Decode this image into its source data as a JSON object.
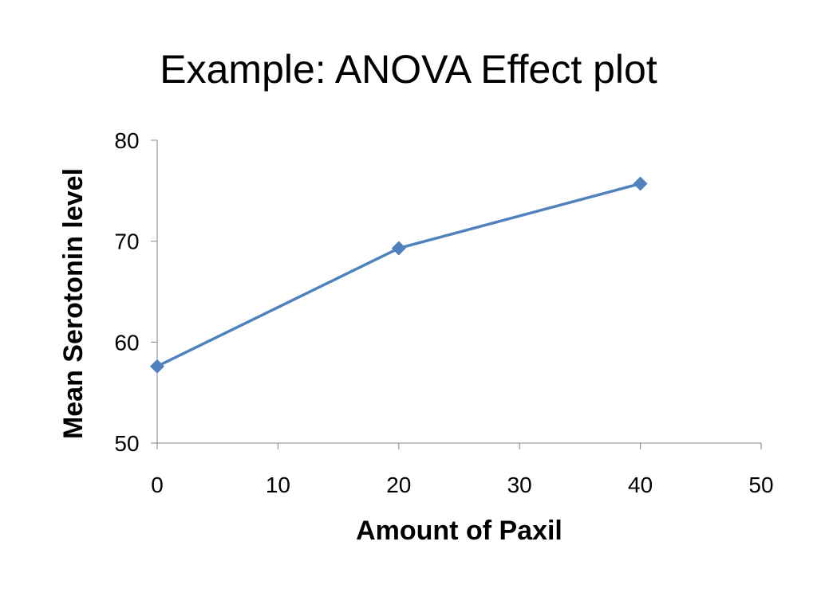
{
  "slide": {
    "title": "Example: ANOVA Effect plot"
  },
  "chart_data": {
    "type": "line",
    "title": "",
    "xlabel": "Amount of Paxil",
    "ylabel": "Mean Serotonin level",
    "xlim": [
      0,
      50
    ],
    "ylim": [
      50,
      80
    ],
    "x_ticks": [
      0,
      10,
      20,
      30,
      40,
      50
    ],
    "y_ticks": [
      50,
      60,
      70,
      80
    ],
    "grid": false,
    "legend": "none",
    "series": [
      {
        "color": "#4f81bd",
        "marker": "diamond",
        "points": [
          {
            "x": 0,
            "y": 57.6
          },
          {
            "x": 20,
            "y": 69.3
          },
          {
            "x": 40,
            "y": 75.7
          }
        ]
      }
    ]
  }
}
